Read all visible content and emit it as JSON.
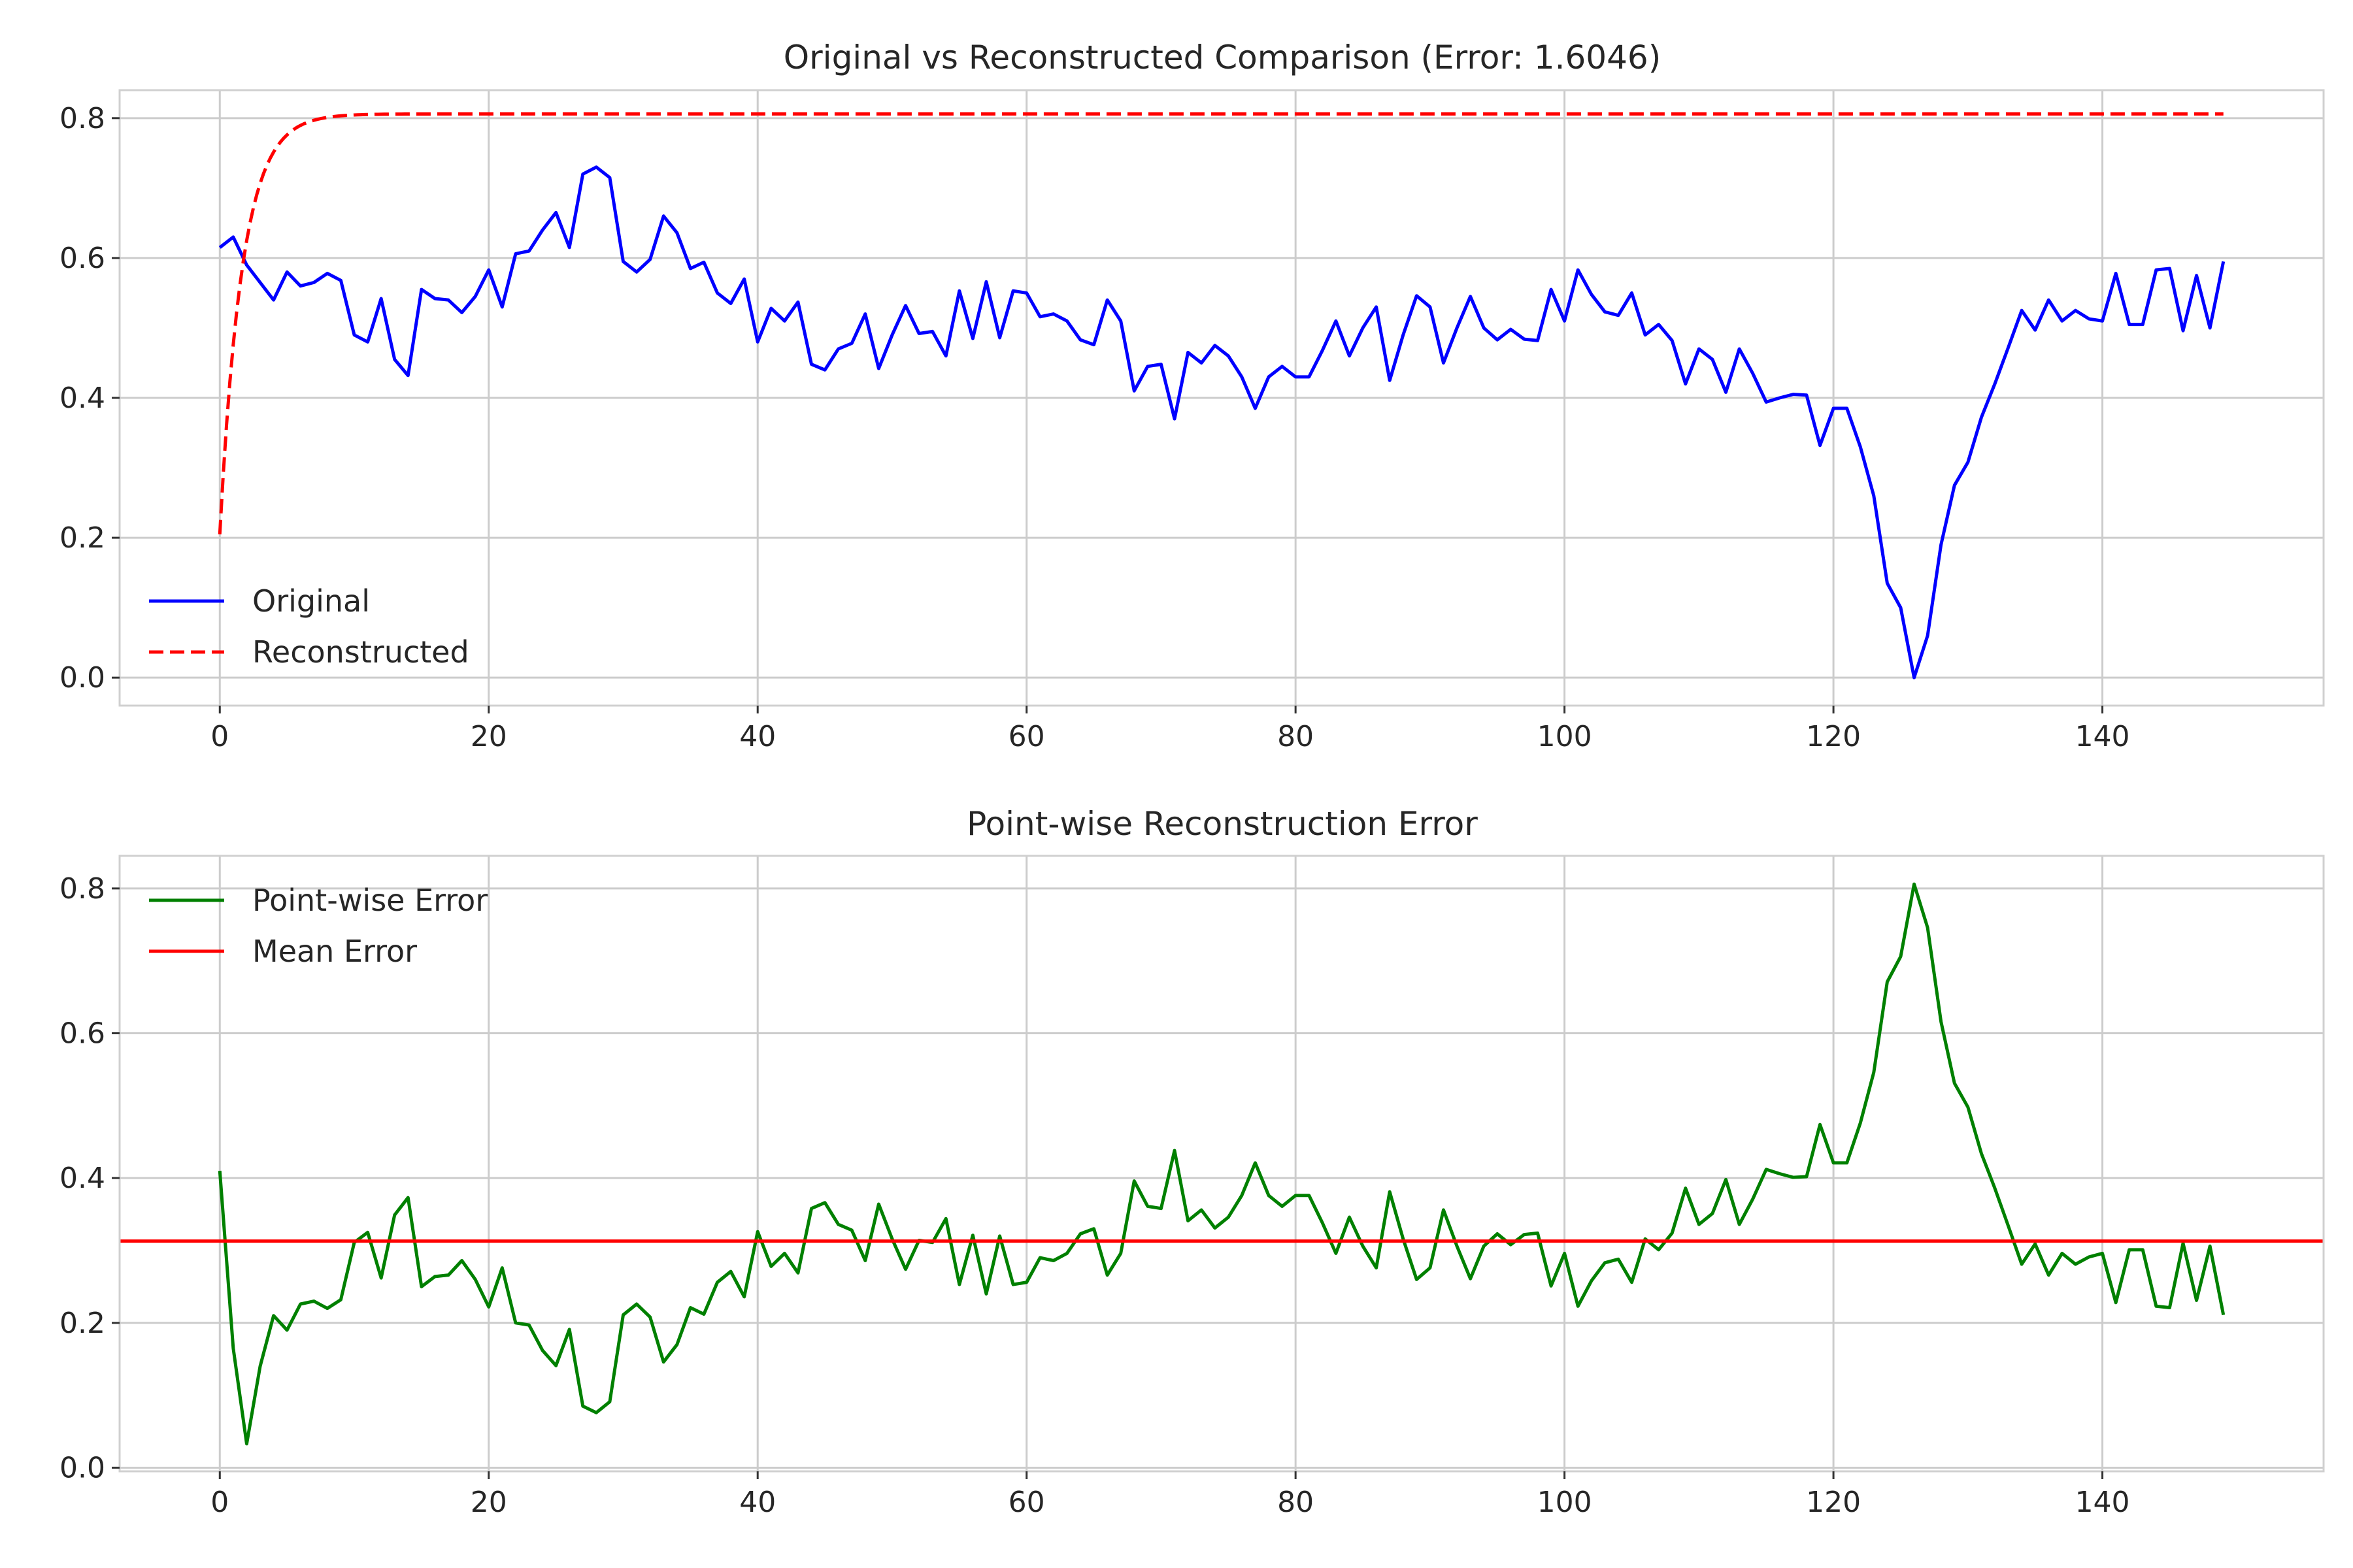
{
  "colors": {
    "original": "#0000ff",
    "reconstructed": "#ff0000",
    "pointwise": "#008000",
    "mean": "#ff0000",
    "grid": "#cccccc",
    "frame": "#d0d0d0"
  },
  "chart_data": [
    {
      "type": "line",
      "title": "Original vs Reconstructed Comparison (Error: 1.6046)",
      "xlabel": "",
      "ylabel": "",
      "xlim": [
        -7.45,
        156.45
      ],
      "ylim": [
        -0.04,
        0.84
      ],
      "xticks": [
        0,
        20,
        40,
        60,
        80,
        100,
        120,
        140
      ],
      "yticks": [
        0.0,
        0.2,
        0.4,
        0.6,
        0.8
      ],
      "xtick_labels": [
        "0",
        "20",
        "40",
        "60",
        "80",
        "100",
        "120",
        "140"
      ],
      "ytick_labels": [
        "0.0",
        "0.2",
        "0.4",
        "0.6",
        "0.8"
      ],
      "grid": true,
      "legend_position": "lower-left",
      "series": [
        {
          "name": "Original",
          "color": "#0000ff",
          "dash": "solid",
          "x_start": 0,
          "values": [
            0.615,
            0.63,
            0.59,
            0.565,
            0.54,
            0.58,
            0.56,
            0.565,
            0.578,
            0.568,
            0.49,
            0.48,
            0.542,
            0.455,
            0.432,
            0.555,
            0.542,
            0.54,
            0.522,
            0.545,
            0.583,
            0.53,
            0.606,
            0.61,
            0.64,
            0.665,
            0.615,
            0.72,
            0.73,
            0.715,
            0.595,
            0.58,
            0.598,
            0.66,
            0.636,
            0.585,
            0.594,
            0.55,
            0.535,
            0.57,
            0.48,
            0.528,
            0.51,
            0.537,
            0.448,
            0.44,
            0.47,
            0.478,
            0.52,
            0.442,
            0.49,
            0.532,
            0.492,
            0.495,
            0.46,
            0.553,
            0.485,
            0.566,
            0.486,
            0.553,
            0.55,
            0.516,
            0.52,
            0.51,
            0.483,
            0.476,
            0.54,
            0.51,
            0.41,
            0.445,
            0.448,
            0.37,
            0.465,
            0.45,
            0.475,
            0.46,
            0.43,
            0.385,
            0.43,
            0.445,
            0.43,
            0.43,
            0.468,
            0.51,
            0.46,
            0.5,
            0.53,
            0.425,
            0.49,
            0.546,
            0.53,
            0.45,
            0.5,
            0.545,
            0.5,
            0.483,
            0.498,
            0.484,
            0.482,
            0.555,
            0.51,
            0.583,
            0.548,
            0.523,
            0.518,
            0.55,
            0.49,
            0.505,
            0.482,
            0.42,
            0.47,
            0.455,
            0.408,
            0.47,
            0.435,
            0.394,
            0.4,
            0.405,
            0.404,
            0.332,
            0.385,
            0.385,
            0.33,
            0.26,
            0.135,
            0.1,
            0.0,
            0.06,
            0.19,
            0.275,
            0.308,
            0.372,
            0.42,
            0.472,
            0.525,
            0.497,
            0.54,
            0.51,
            0.525,
            0.513,
            0.51,
            0.578,
            0.505,
            0.505,
            0.583,
            0.585,
            0.496,
            0.575,
            0.5,
            0.595
          ]
        },
        {
          "name": "Reconstructed",
          "color": "#ff0000",
          "dash": "dashed",
          "x_start": 0,
          "model": {
            "form": "exponential_approach",
            "start": 0.205,
            "end": 0.806,
            "rate": 0.6
          },
          "x_end": 149
        }
      ]
    },
    {
      "type": "line",
      "title": "Point-wise Reconstruction Error",
      "xlabel": "",
      "ylabel": "",
      "xlim": [
        -7.45,
        156.45
      ],
      "ylim": [
        -0.005,
        0.845
      ],
      "xticks": [
        0,
        20,
        40,
        60,
        80,
        100,
        120,
        140
      ],
      "yticks": [
        0.0,
        0.2,
        0.4,
        0.6,
        0.8
      ],
      "xtick_labels": [
        "0",
        "20",
        "40",
        "60",
        "80",
        "100",
        "120",
        "140"
      ],
      "ytick_labels": [
        "0.0",
        "0.2",
        "0.4",
        "0.6",
        "0.8"
      ],
      "grid": true,
      "legend_position": "upper-left",
      "series": [
        {
          "name": "Point-wise Error",
          "color": "#008000",
          "dash": "solid",
          "x_start": 0,
          "values": [
            0.41,
            0.165,
            0.033,
            0.14,
            0.21,
            0.19,
            0.226,
            0.23,
            0.22,
            0.232,
            0.311,
            0.325,
            0.262,
            0.349,
            0.373,
            0.25,
            0.264,
            0.266,
            0.286,
            0.26,
            0.222,
            0.276,
            0.2,
            0.197,
            0.162,
            0.141,
            0.191,
            0.085,
            0.076,
            0.091,
            0.211,
            0.226,
            0.208,
            0.146,
            0.17,
            0.221,
            0.212,
            0.256,
            0.271,
            0.236,
            0.326,
            0.278,
            0.296,
            0.269,
            0.358,
            0.366,
            0.336,
            0.328,
            0.286,
            0.364,
            0.316,
            0.274,
            0.314,
            0.311,
            0.344,
            0.253,
            0.321,
            0.24,
            0.32,
            0.253,
            0.256,
            0.29,
            0.286,
            0.296,
            0.323,
            0.33,
            0.266,
            0.296,
            0.396,
            0.361,
            0.358,
            0.438,
            0.341,
            0.356,
            0.331,
            0.346,
            0.376,
            0.421,
            0.376,
            0.361,
            0.376,
            0.376,
            0.338,
            0.296,
            0.346,
            0.306,
            0.276,
            0.381,
            0.316,
            0.26,
            0.276,
            0.356,
            0.306,
            0.261,
            0.306,
            0.323,
            0.308,
            0.322,
            0.324,
            0.251,
            0.296,
            0.223,
            0.258,
            0.283,
            0.288,
            0.256,
            0.316,
            0.301,
            0.324,
            0.386,
            0.336,
            0.351,
            0.398,
            0.336,
            0.371,
            0.412,
            0.406,
            0.401,
            0.402,
            0.474,
            0.421,
            0.421,
            0.476,
            0.546,
            0.671,
            0.706,
            0.806,
            0.746,
            0.616,
            0.531,
            0.498,
            0.434,
            0.386,
            0.334,
            0.281,
            0.309,
            0.266,
            0.296,
            0.281,
            0.291,
            0.296,
            0.228,
            0.301,
            0.301,
            0.223,
            0.221,
            0.31,
            0.231,
            0.306,
            0.211
          ]
        },
        {
          "name": "Mean Error",
          "color": "#ff0000",
          "dash": "solid",
          "constant": 0.313
        }
      ]
    }
  ]
}
